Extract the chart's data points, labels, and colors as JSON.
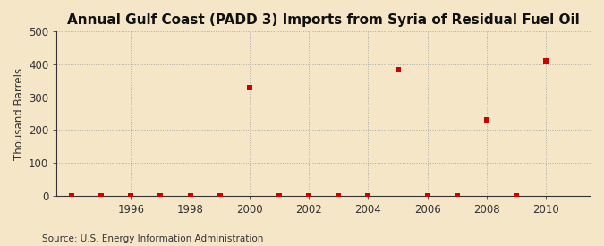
{
  "title": "Annual Gulf Coast (PADD 3) Imports from Syria of Residual Fuel Oil",
  "ylabel": "Thousand Barrels",
  "source": "Source: U.S. Energy Information Administration",
  "background_color": "#f5e6c8",
  "data_points": [
    {
      "year": 1994,
      "value": 0
    },
    {
      "year": 1995,
      "value": 0
    },
    {
      "year": 1996,
      "value": 0
    },
    {
      "year": 1997,
      "value": 0
    },
    {
      "year": 1998,
      "value": 0
    },
    {
      "year": 1999,
      "value": 0
    },
    {
      "year": 2000,
      "value": 330
    },
    {
      "year": 2001,
      "value": 0
    },
    {
      "year": 2002,
      "value": 0
    },
    {
      "year": 2003,
      "value": 0
    },
    {
      "year": 2004,
      "value": 0
    },
    {
      "year": 2005,
      "value": 385
    },
    {
      "year": 2006,
      "value": 0
    },
    {
      "year": 2007,
      "value": 0
    },
    {
      "year": 2008,
      "value": 232
    },
    {
      "year": 2009,
      "value": 0
    },
    {
      "year": 2010,
      "value": 412
    }
  ],
  "marker_color": "#cc0000",
  "marker_size": 5,
  "xlim": [
    1993.5,
    2011.5
  ],
  "ylim": [
    0,
    500
  ],
  "yticks": [
    0,
    100,
    200,
    300,
    400,
    500
  ],
  "xticks": [
    1996,
    1998,
    2000,
    2002,
    2004,
    2006,
    2008,
    2010
  ],
  "grid_color": "#aaaaaa",
  "title_fontsize": 11,
  "ylabel_fontsize": 8.5,
  "tick_fontsize": 8.5,
  "source_fontsize": 7.5
}
